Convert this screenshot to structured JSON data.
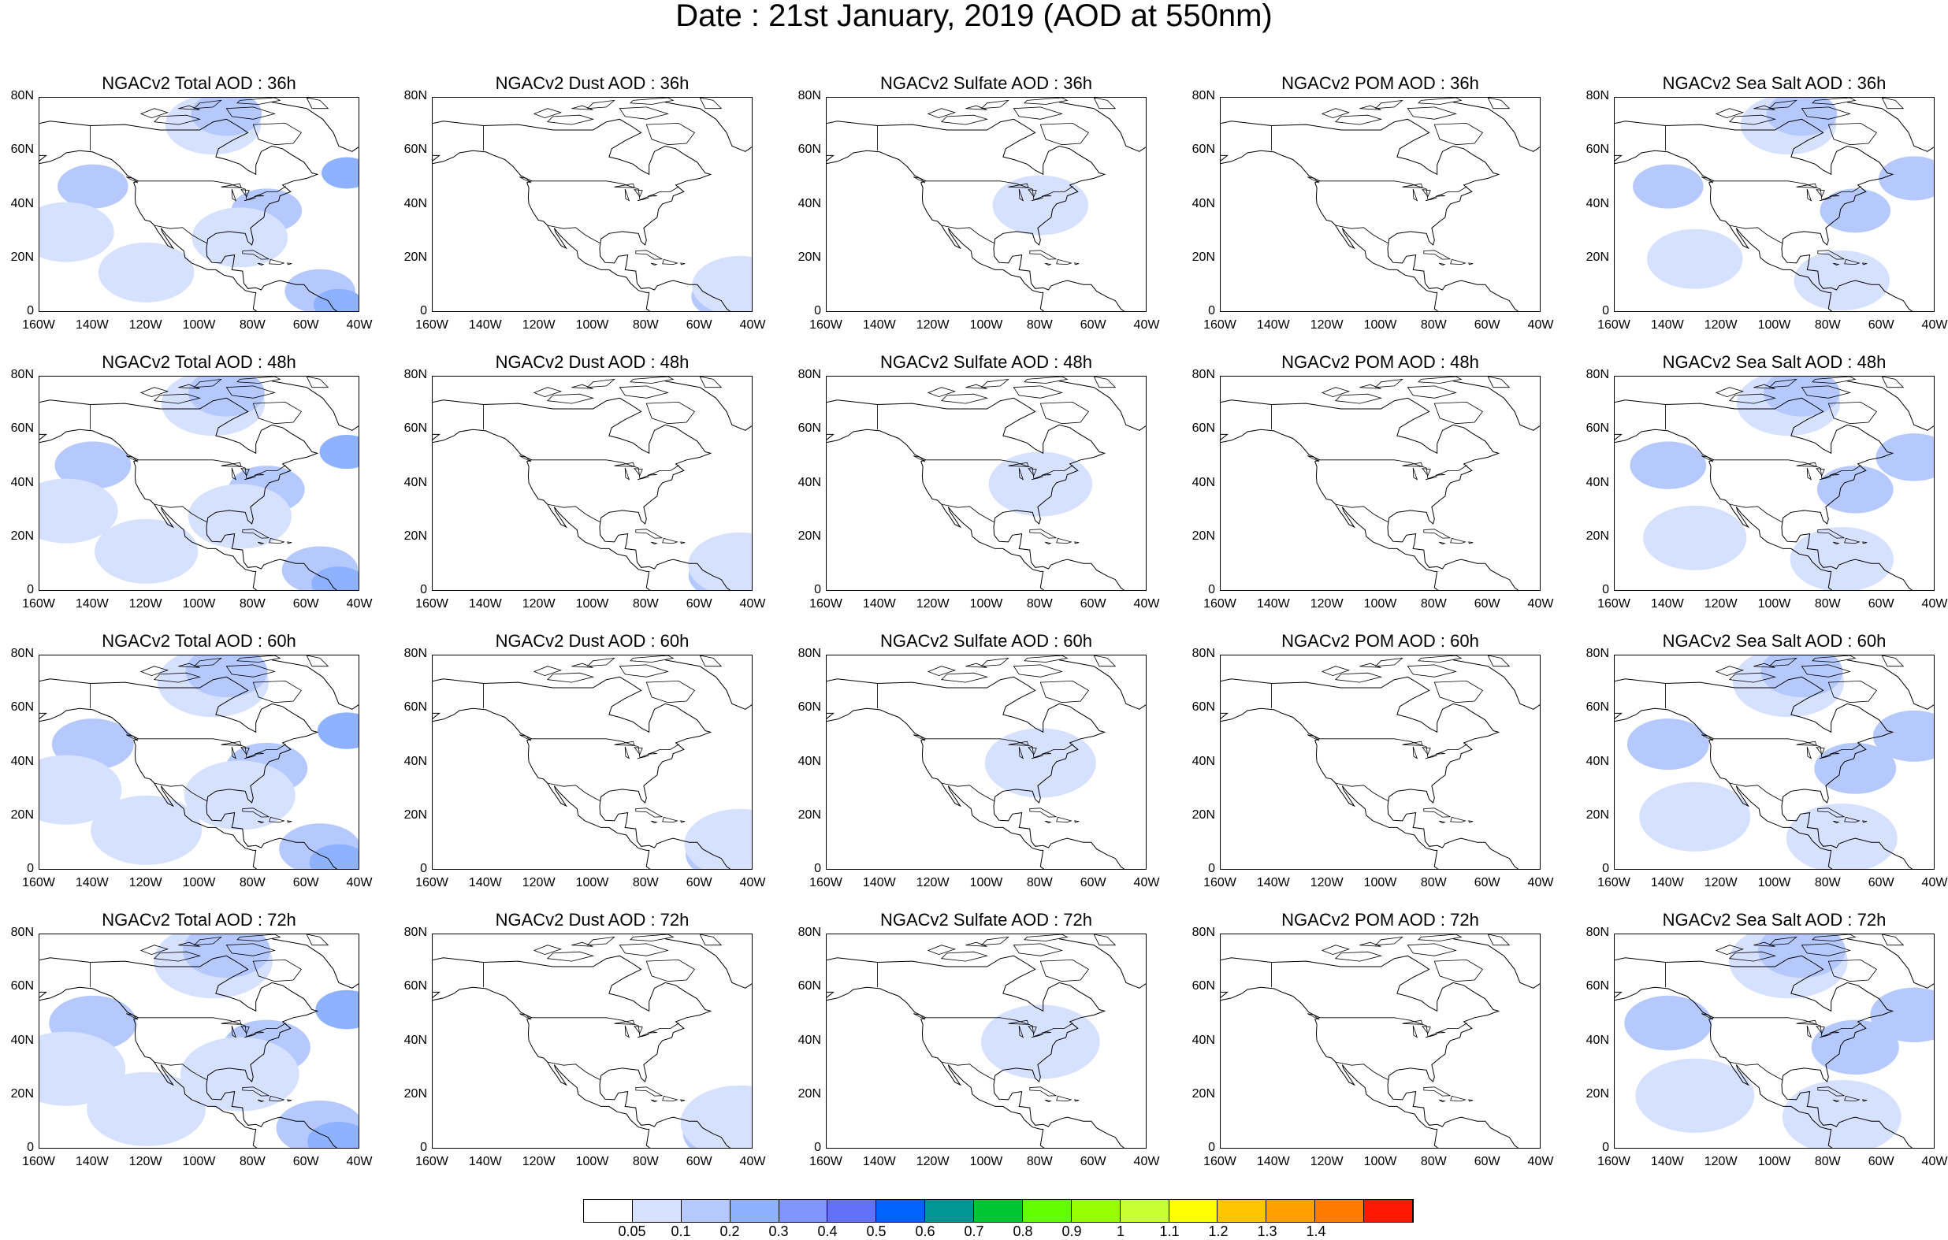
{
  "title": "Date : 21st January, 2019 (AOD at 550nm)",
  "columns": [
    "NGACv2 Total AOD",
    "NGACv2 Dust AOD",
    "NGACv2 Sulfate AOD",
    "NGACv2 POM AOD",
    "NGACv2 Sea Salt AOD"
  ],
  "panel_titles": [
    [
      "NGACv2 Total AOD : 36h",
      "NGACv2 Dust AOD : 36h",
      "NGACv2 Sulfate AOD : 36h",
      "NGACv2 POM AOD : 36h",
      "NGACv2 Sea Salt AOD : 36h"
    ],
    [
      "NGACv2 Total AOD : 48h",
      "NGACv2 Dust AOD : 48h",
      "NGACv2 Sulfate AOD : 48h",
      "NGACv2 POM AOD : 48h",
      "NGACv2 Sea Salt AOD : 48h"
    ],
    [
      "NGACv2 Total AOD : 60h",
      "NGACv2 Dust AOD : 60h",
      "NGACv2 Sulfate AOD : 60h",
      "NGACv2 POM AOD : 60h",
      "NGACv2 Sea Salt AOD : 60h"
    ],
    [
      "NGACv2 Total AOD : 72h",
      "NGACv2 Dust AOD : 72h",
      "NGACv2 Sulfate AOD : 72h",
      "NGACv2 POM AOD : 72h",
      "NGACv2 Sea Salt  AOD : 72h"
    ]
  ],
  "lat_ticks": [
    "80N",
    "60N",
    "40N",
    "20N",
    "0"
  ],
  "lon_ticks": [
    "160W",
    "140W",
    "120W",
    "100W",
    "80W",
    "60W",
    "40W"
  ],
  "colorbar": {
    "colors": [
      "#ffffff",
      "#d6e1ff",
      "#b5c9ff",
      "#8eb2ff",
      "#7f96ff",
      "#6370f8",
      "#0063ff",
      "#009696",
      "#00c633",
      "#63ff00",
      "#96ff00",
      "#c6ff33",
      "#ffff00",
      "#ffc600",
      "#ffa000",
      "#ff7c00",
      "#ff1900"
    ],
    "labels": [
      "0.05",
      "0.1",
      "0.2",
      "0.3",
      "0.4",
      "0.5",
      "0.6",
      "0.7",
      "0.8",
      "0.9",
      "1",
      "1.1",
      "1.2",
      "1.3",
      "1.4"
    ]
  },
  "aod_blobs": {
    "total": [
      {
        "lat": 70,
        "lon": -95,
        "level": 1
      },
      {
        "lat": 74,
        "lon": -90,
        "level": 2
      },
      {
        "lat": 47,
        "lon": -140,
        "level": 2
      },
      {
        "lat": 52,
        "lon": -45,
        "level": 3
      },
      {
        "lat": 38,
        "lon": -75,
        "level": 2
      },
      {
        "lat": 8,
        "lon": -55,
        "level": 2
      },
      {
        "lat": 3,
        "lon": -48,
        "level": 3
      },
      {
        "lat": 15,
        "lon": -120,
        "level": 1
      },
      {
        "lat": 30,
        "lon": -150,
        "level": 1
      },
      {
        "lat": 28,
        "lon": -85,
        "level": 1
      }
    ],
    "dust": [
      {
        "lat": 6,
        "lon": -50,
        "level": 2
      },
      {
        "lat": 10,
        "lon": -45,
        "level": 1
      }
    ],
    "sulfate": [
      {
        "lat": 40,
        "lon": -80,
        "level": 1
      }
    ],
    "pom": [],
    "seasalt": [
      {
        "lat": 70,
        "lon": -95,
        "level": 1
      },
      {
        "lat": 74,
        "lon": -90,
        "level": 2
      },
      {
        "lat": 47,
        "lon": -140,
        "level": 2
      },
      {
        "lat": 50,
        "lon": -48,
        "level": 2
      },
      {
        "lat": 38,
        "lon": -70,
        "level": 2
      },
      {
        "lat": 12,
        "lon": -75,
        "level": 1
      },
      {
        "lat": 20,
        "lon": -130,
        "level": 1
      }
    ]
  }
}
